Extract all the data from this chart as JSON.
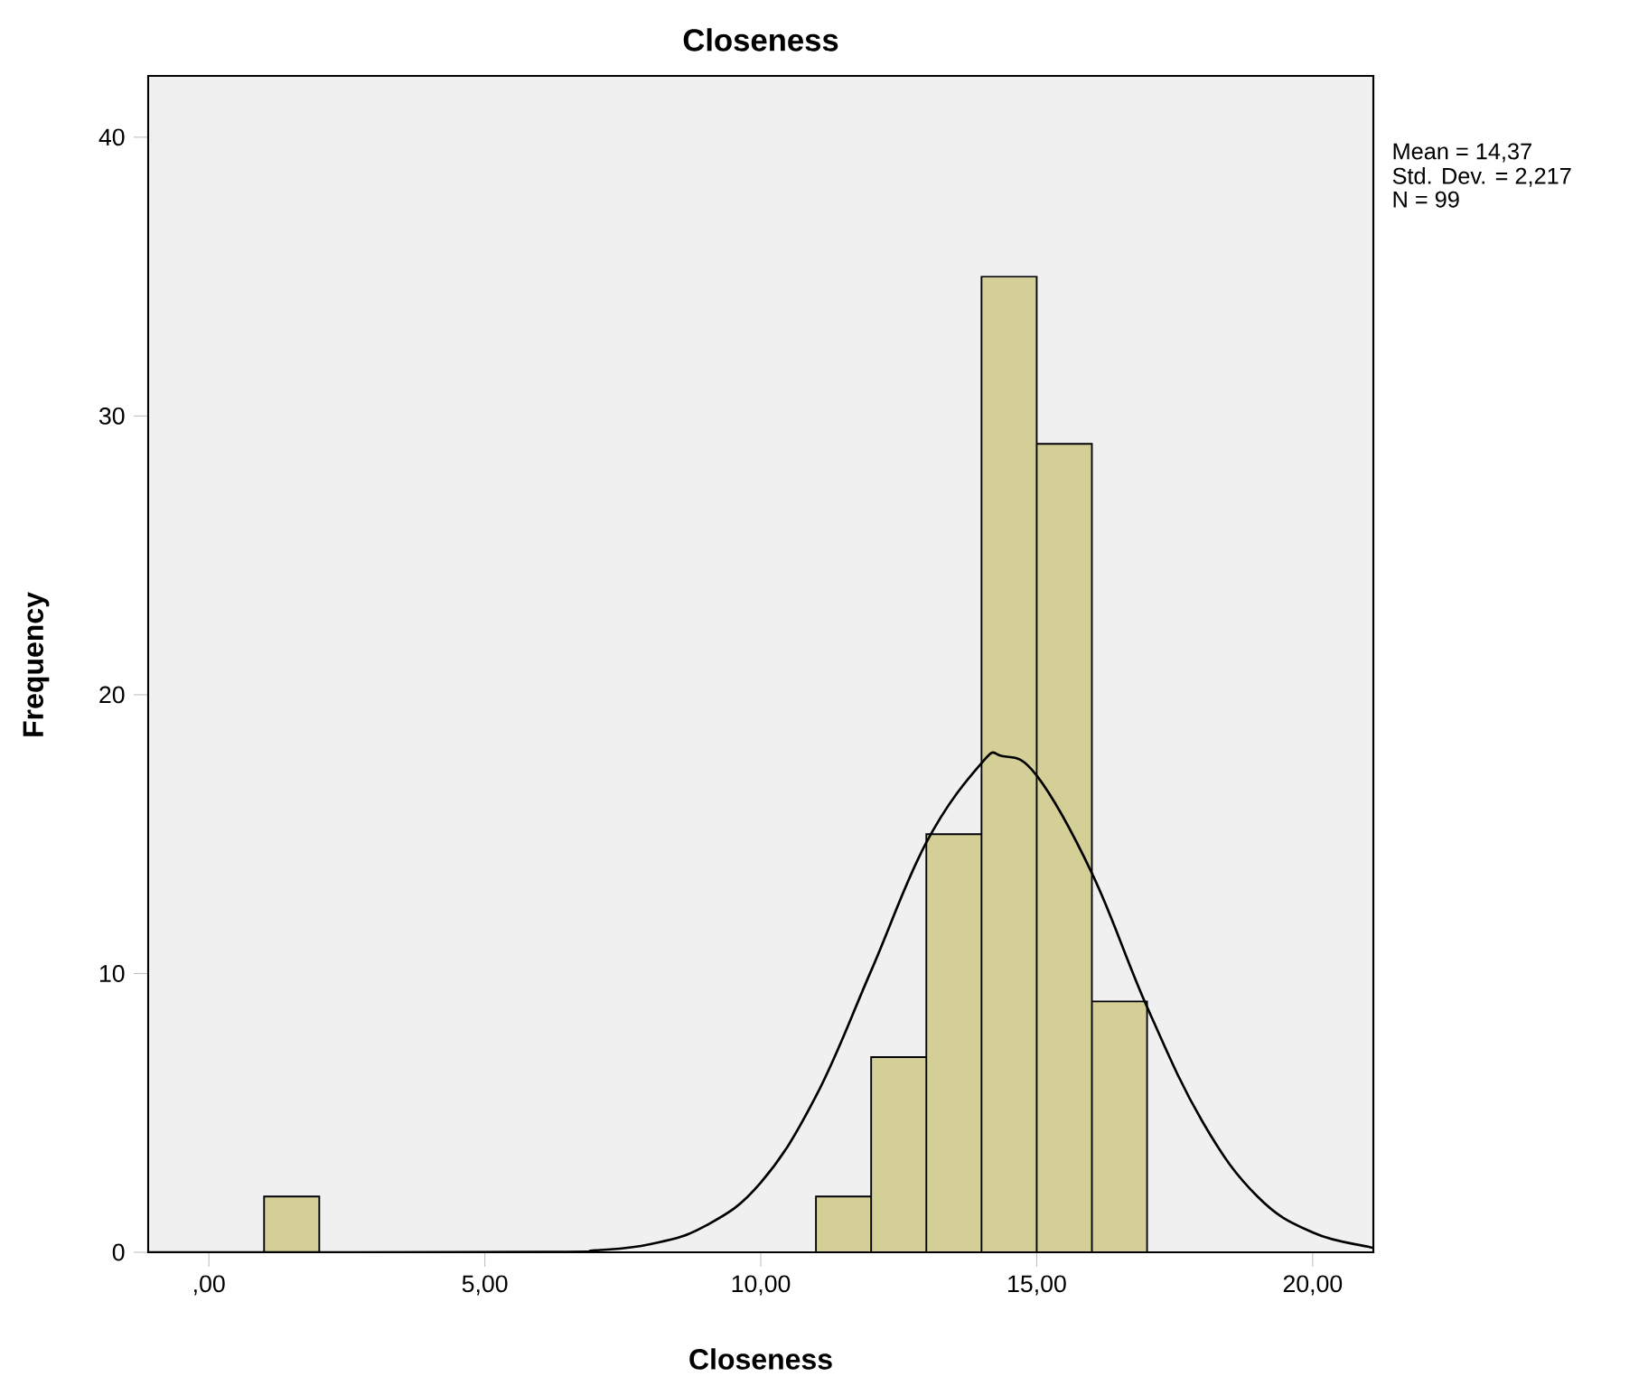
{
  "chart_data": {
    "type": "histogram",
    "title": "Closeness",
    "xlabel": "Closeness",
    "ylabel": "Frequency",
    "bins": [
      1,
      2,
      3,
      4,
      5,
      6,
      7,
      8,
      9,
      10,
      11,
      12,
      13,
      14,
      15,
      16,
      17
    ],
    "series": [
      {
        "color": "#d3cf97",
        "values": [
          2,
          0,
          0,
          0,
          0,
          0,
          0,
          0,
          0,
          0,
          2,
          7,
          15,
          35,
          29,
          9
        ]
      },
      {
        "type": "line",
        "color": "#000000",
        "marker": "none",
        "x": [
          -1.1,
          6,
          7,
          8,
          9,
          10,
          11,
          12,
          13,
          14,
          14.37,
          15,
          16,
          17,
          18,
          19,
          20,
          21,
          21.1
        ],
        "values": [
          0,
          0.01,
          0.07,
          0.29,
          0.95,
          2.5,
          5.6,
          10.1,
          14.7,
          17.55,
          17.8,
          17.1,
          13.6,
          8.8,
          4.7,
          2.0,
          0.71,
          0.2,
          0.18
        ]
      }
    ],
    "xlim": [
      -1.1,
      21.1
    ],
    "ylim": [
      0,
      42.2
    ],
    "xticks": [
      {
        "value": 0,
        "label": ",00"
      },
      {
        "value": 5,
        "label": "5,00"
      },
      {
        "value": 10,
        "label": "10,00"
      },
      {
        "value": 15,
        "label": "15,00"
      },
      {
        "value": 20,
        "label": "20,00"
      }
    ],
    "yticks": [
      0,
      10,
      20,
      30,
      40
    ],
    "annotations": [
      "Mean = 14,37",
      "Std. Dev. = 2,217",
      "N = 99"
    ]
  }
}
